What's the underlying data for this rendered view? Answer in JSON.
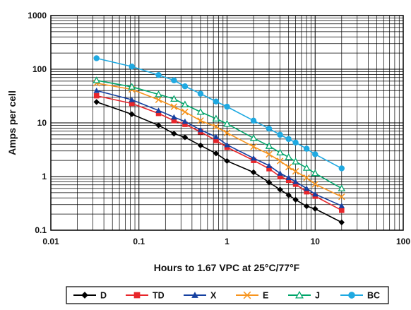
{
  "chart_data": {
    "type": "line",
    "xlabel": "Hours to 1.67 VPC at 25°C/77°F",
    "ylabel": "Amps per cell",
    "x_scale": "log",
    "y_scale": "log",
    "xlim": [
      0.01,
      100
    ],
    "ylim": [
      0.1,
      1000
    ],
    "x_ticks": [
      "0.01",
      "0.1",
      "1",
      "10",
      "100"
    ],
    "y_ticks": [
      "1000",
      "100",
      "10",
      "1",
      "0.1"
    ],
    "grid": true,
    "legend_position": "bottom",
    "series": [
      {
        "name": "D",
        "color": "#000000",
        "marker": "diamond",
        "x": [
          0.033,
          0.083,
          0.167,
          0.25,
          0.333,
          0.5,
          0.75,
          1,
          2,
          3,
          4,
          5,
          6,
          8,
          10,
          20
        ],
        "y": [
          24.5,
          14.5,
          9.0,
          6.3,
          5.4,
          3.8,
          2.7,
          1.95,
          1.2,
          0.78,
          0.57,
          0.45,
          0.37,
          0.28,
          0.25,
          0.14
        ]
      },
      {
        "name": "TD",
        "color": "#e8262b",
        "marker": "square",
        "x": [
          0.033,
          0.083,
          0.167,
          0.25,
          0.333,
          0.5,
          0.75,
          1,
          2,
          3,
          4,
          5,
          6,
          8,
          10,
          20
        ],
        "y": [
          32,
          23,
          15,
          11,
          9.4,
          6.8,
          4.7,
          3.5,
          2.0,
          1.4,
          1.0,
          0.85,
          0.72,
          0.52,
          0.43,
          0.235
        ]
      },
      {
        "name": "X",
        "color": "#1540a0",
        "marker": "triangle",
        "x": [
          0.033,
          0.083,
          0.167,
          0.25,
          0.333,
          0.5,
          0.75,
          1,
          2,
          3,
          4,
          5,
          6,
          8,
          10,
          20
        ],
        "y": [
          40,
          27,
          17,
          12.8,
          10.6,
          7.4,
          5.5,
          3.9,
          2.2,
          1.6,
          1.15,
          0.95,
          0.8,
          0.6,
          0.47,
          0.285
        ]
      },
      {
        "name": "E",
        "color": "#f7941d",
        "marker": "x",
        "x": [
          0.033,
          0.083,
          0.167,
          0.25,
          0.333,
          0.5,
          0.75,
          1,
          2,
          3,
          4,
          5,
          6,
          8,
          10,
          20
        ],
        "y": [
          55,
          42,
          27,
          20,
          16,
          11,
          8.5,
          6.5,
          3.6,
          2.6,
          1.95,
          1.5,
          1.25,
          0.95,
          0.72,
          0.42
        ]
      },
      {
        "name": "J",
        "color": "#00a56a",
        "marker": "triangle-open",
        "x": [
          0.033,
          0.083,
          0.167,
          0.25,
          0.333,
          0.5,
          0.75,
          1,
          2,
          3,
          4,
          5,
          6,
          8,
          10,
          20
        ],
        "y": [
          62,
          47,
          34,
          28,
          22,
          16,
          12,
          9.6,
          5.2,
          3.7,
          2.8,
          2.3,
          1.9,
          1.45,
          1.15,
          0.6
        ]
      },
      {
        "name": "BC",
        "color": "#1fa9e1",
        "marker": "circle",
        "x": [
          0.033,
          0.083,
          0.167,
          0.25,
          0.333,
          0.5,
          0.75,
          1,
          2,
          3,
          4,
          5,
          6,
          8,
          10,
          20
        ],
        "y": [
          160,
          112,
          78,
          62,
          48,
          35,
          25,
          20,
          11,
          7.8,
          6.0,
          5.0,
          4.3,
          3.3,
          2.6,
          1.42
        ]
      }
    ]
  }
}
